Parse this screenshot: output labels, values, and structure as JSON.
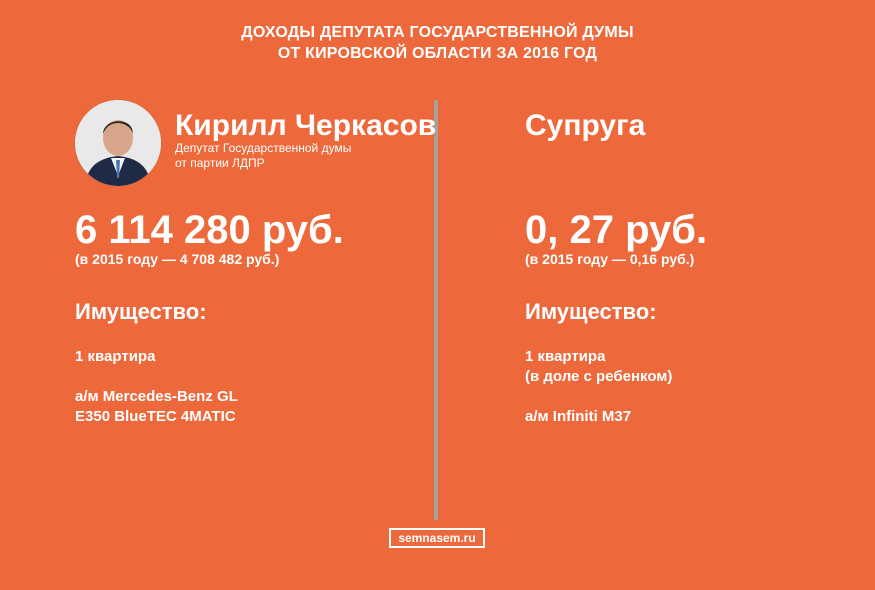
{
  "title": {
    "line1": "ДОХОДЫ ДЕПУТАТА ГОСУДАРСТВЕННОЙ ДУМЫ",
    "line2": "ОТ КИРОВСКОЙ ОБЛАСТИ ЗА 2016 ГОД"
  },
  "deputy": {
    "name": "Кирилл Черкасов",
    "role_line1": "Депутат Государственной думы",
    "role_line2": "от партии ЛДПР",
    "income": "6 114 280 руб.",
    "prev_income": "(в 2015 году — 4 708 482 руб.)",
    "property_heading": "Имущество:",
    "items": [
      {
        "lines": [
          "1 квартира"
        ]
      },
      {
        "lines": [
          "а/м Mercedes-Benz GL",
          "E350 BlueTEC 4MATIC"
        ]
      }
    ]
  },
  "spouse": {
    "name": "Супруга",
    "income": "0, 27 руб.",
    "prev_income": "(в 2015 году — 0,16 руб.)",
    "property_heading": "Имущество:",
    "items": [
      {
        "lines": [
          "1 квартира",
          "(в доле с ребенком)"
        ]
      },
      {
        "lines": [
          "а/м Infiniti M37"
        ]
      }
    ]
  },
  "footer": {
    "site": "semnasem.ru"
  },
  "colors": {
    "background": "#ed693c",
    "divider": "#a3a29b",
    "text": "#ffffff"
  }
}
